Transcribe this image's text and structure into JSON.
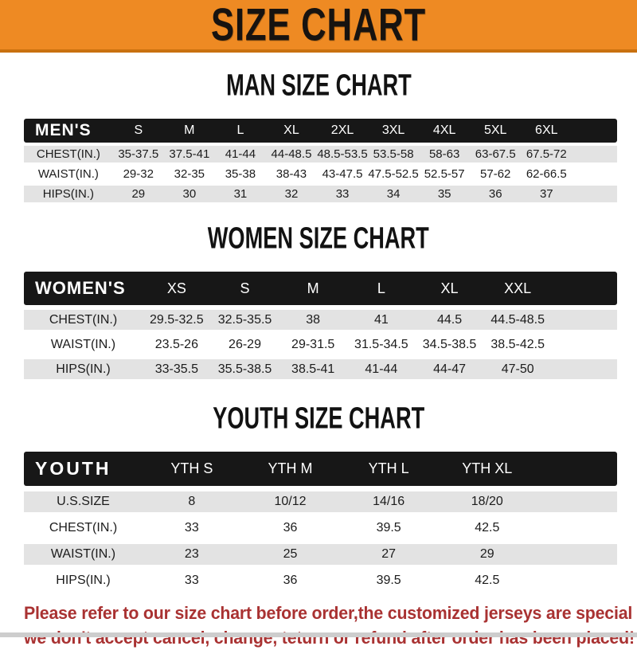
{
  "banner": {
    "title": "SIZE CHART"
  },
  "colors": {
    "orange": "#EE8A23",
    "bar_black": "#171717",
    "row_gray": "#E3E3E3",
    "red": "#A93232",
    "bottom_strip": "#CDCDCD"
  },
  "sections": [
    {
      "heading": "MAN SIZE CHART",
      "header_label": "MEN'S",
      "columns": [
        "S",
        "M",
        "L",
        "XL",
        "2XL",
        "3XL",
        "4XL",
        "5XL",
        "6XL"
      ],
      "rows": [
        {
          "label": "CHEST(IN.)",
          "values": [
            "35-37.5",
            "37.5-41",
            "41-44",
            "44-48.5",
            "48.5-53.5",
            "53.5-58",
            "58-63",
            "63-67.5",
            "67.5-72"
          ]
        },
        {
          "label": "WAIST(IN.)",
          "values": [
            "29-32",
            "32-35",
            "35-38",
            "38-43",
            "43-47.5",
            "47.5-52.5",
            "52.5-57",
            "57-62",
            "62-66.5"
          ]
        },
        {
          "label": "HIPS(IN.)",
          "values": [
            "29",
            "30",
            "31",
            "32",
            "33",
            "34",
            "35",
            "36",
            "37"
          ]
        }
      ]
    },
    {
      "heading": "WOMEN SIZE CHART",
      "header_label": "WOMEN'S",
      "columns": [
        "XS",
        "S",
        "M",
        "L",
        "XL",
        "XXL"
      ],
      "rows": [
        {
          "label": "CHEST(IN.)",
          "values": [
            "29.5-32.5",
            "32.5-35.5",
            "38",
            "41",
            "44.5",
            "44.5-48.5"
          ]
        },
        {
          "label": "WAIST(IN.)",
          "values": [
            "23.5-26",
            "26-29",
            "29-31.5",
            "31.5-34.5",
            "34.5-38.5",
            "38.5-42.5"
          ]
        },
        {
          "label": "HIPS(IN.)",
          "values": [
            "33-35.5",
            "35.5-38.5",
            "38.5-41",
            "41-44",
            "44-47",
            "47-50"
          ]
        }
      ]
    },
    {
      "heading": "YOUTH SIZE CHART",
      "header_label": "YOUTH",
      "columns": [
        "YTH S",
        "YTH M",
        "YTH L",
        "YTH XL"
      ],
      "rows": [
        {
          "label": "U.S.SIZE",
          "values": [
            "8",
            "10/12",
            "14/16",
            "18/20"
          ]
        },
        {
          "label": "CHEST(IN.)",
          "values": [
            "33",
            "36",
            "39.5",
            "42.5"
          ]
        },
        {
          "label": "WAIST(IN.)",
          "values": [
            "23",
            "25",
            "27",
            "29"
          ]
        },
        {
          "label": "HIPS(IN.)",
          "values": [
            "33",
            "36",
            "39.5",
            "42.5"
          ]
        }
      ]
    }
  ],
  "footer": {
    "line1": "Please refer to our size chart before order,the customized jerseys are special products,",
    "line2": "we don't accept cancel, change, teturn or refund after order has been placed!"
  }
}
